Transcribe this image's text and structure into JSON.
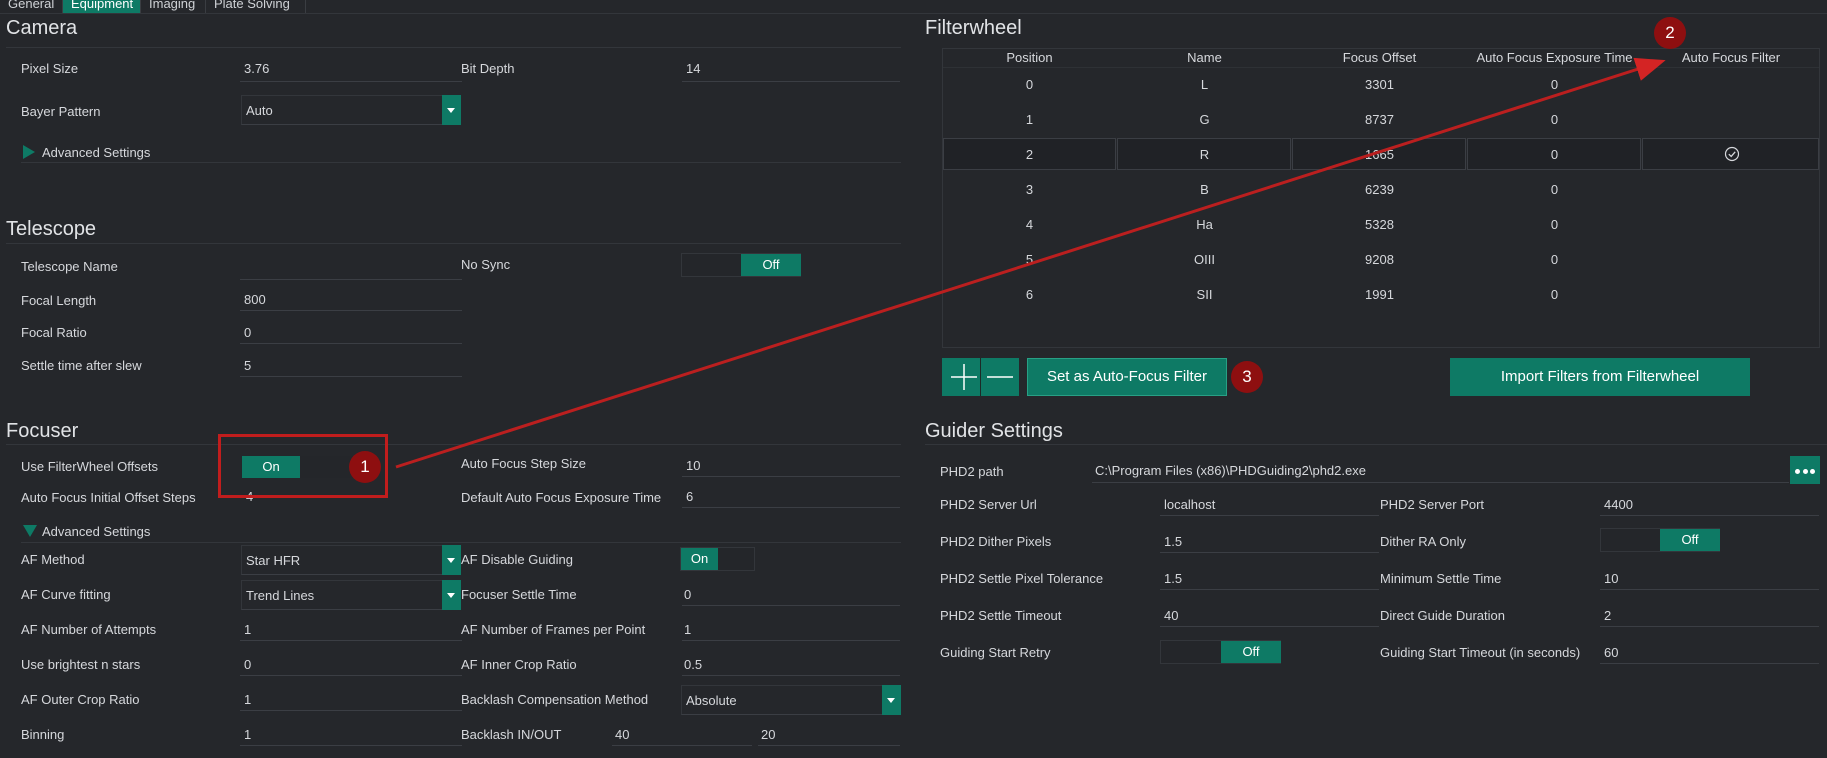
{
  "tabs": [
    "General",
    "Equipment",
    "Imaging",
    "Plate Solving"
  ],
  "camera": {
    "title": "Camera",
    "pixel_size_label": "Pixel Size",
    "pixel_size": "3.76",
    "bit_depth_label": "Bit Depth",
    "bit_depth": "14",
    "bayer_label": "Bayer Pattern",
    "bayer": "Auto",
    "advanced": "Advanced Settings"
  },
  "telescope": {
    "title": "Telescope",
    "name_label": "Telescope Name",
    "name": "",
    "no_sync_label": "No Sync",
    "no_sync": "Off",
    "focal_length_label": "Focal Length",
    "focal_length": "800",
    "focal_ratio_label": "Focal Ratio",
    "focal_ratio": "0",
    "settle_label": "Settle time after slew",
    "settle": "5"
  },
  "focuser": {
    "title": "Focuser",
    "use_fw_label": "Use FilterWheel Offsets",
    "use_fw": "On",
    "step_size_label": "Auto Focus Step Size",
    "step_size": "10",
    "initial_offset_label": "Auto Focus Initial Offset Steps",
    "initial_offset": "4",
    "default_exposure_label": "Default Auto Focus Exposure Time",
    "default_exposure": "6",
    "advanced": "Advanced Settings",
    "af_method_label": "AF Method",
    "af_method": "Star HFR",
    "af_disable_label": "AF Disable Guiding",
    "af_disable": "On",
    "af_curve_label": "AF Curve fitting",
    "af_curve": "Trend Lines",
    "settle_label": "Focuser Settle Time",
    "settle": "0",
    "attempts_label": "AF Number of Attempts",
    "attempts": "1",
    "frames_label": "AF Number of Frames per Point",
    "frames": "1",
    "brightest_label": "Use brightest n stars",
    "brightest": "0",
    "inner_label": "AF Inner Crop Ratio",
    "inner": "0.5",
    "outer_label": "AF Outer Crop Ratio",
    "outer": "1",
    "backlash_method_label": "Backlash Compensation Method",
    "backlash_method": "Absolute",
    "binning_label": "Binning",
    "binning": "1",
    "backlash_io_label": "Backlash IN/OUT",
    "backlash_in": "40",
    "backlash_out": "20"
  },
  "filterwheel": {
    "title": "Filterwheel",
    "columns": [
      "Position",
      "Name",
      "Focus Offset",
      "Auto Focus Exposure Time",
      "Auto Focus Filter"
    ],
    "rows": [
      {
        "pos": "0",
        "name": "L",
        "offset": "3301",
        "exp": "0"
      },
      {
        "pos": "1",
        "name": "G",
        "offset": "8737",
        "exp": "0"
      },
      {
        "pos": "2",
        "name": "R",
        "offset": "1665",
        "exp": "0"
      },
      {
        "pos": "3",
        "name": "B",
        "offset": "6239",
        "exp": "0"
      },
      {
        "pos": "4",
        "name": "Ha",
        "offset": "5328",
        "exp": "0"
      },
      {
        "pos": "5",
        "name": "OIII",
        "offset": "9208",
        "exp": "0"
      },
      {
        "pos": "6",
        "name": "SII",
        "offset": "1991",
        "exp": "0"
      }
    ],
    "selected_row": 2,
    "set_af_button": "Set as Auto-Focus Filter",
    "import_button": "Import Filters from Filterwheel"
  },
  "guider": {
    "title": "Guider Settings",
    "path_label": "PHD2 path",
    "path": "C:\\Program Files (x86)\\PHDGuiding2\\phd2.exe",
    "url_label": "PHD2 Server Url",
    "url": "localhost",
    "port_label": "PHD2 Server Port",
    "port": "4400",
    "dither_label": "PHD2 Dither Pixels",
    "dither": "1.5",
    "dither_ra_label": "Dither RA Only",
    "dither_ra": "Off",
    "tolerance_label": "PHD2 Settle Pixel Tolerance",
    "tolerance": "1.5",
    "min_settle_label": "Minimum Settle Time",
    "min_settle": "10",
    "timeout_label": "PHD2 Settle Timeout",
    "timeout": "40",
    "direct_label": "Direct Guide Duration",
    "direct": "2",
    "retry_label": "Guiding Start Retry",
    "retry": "Off",
    "start_timeout_label": "Guiding Start Timeout (in seconds)",
    "start_timeout": "60"
  },
  "annotations": [
    "1",
    "2",
    "3"
  ],
  "colors": {
    "accent": "#0e7a65",
    "background": "#25272b",
    "annotation": "#c11d1d"
  }
}
